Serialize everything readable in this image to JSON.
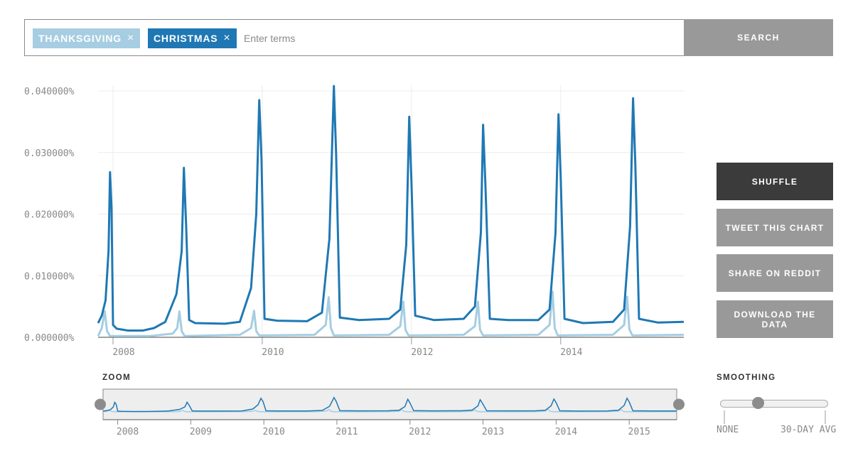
{
  "search": {
    "tags": [
      {
        "label": "THANKSGIVING",
        "remove": "×",
        "color": "#a6cde2"
      },
      {
        "label": "CHRISTMAS",
        "remove": "×",
        "color": "#1f78b4"
      }
    ],
    "placeholder": "Enter terms",
    "button": "SEARCH"
  },
  "actions": {
    "shuffle": "SHUFFLE",
    "tweet": "TWEET THIS CHART",
    "reddit": "SHARE ON REDDIT",
    "download": "DOWNLOAD THE DATA"
  },
  "zoom": {
    "label": "ZOOM",
    "ticks": [
      "2008",
      "2009",
      "2010",
      "2011",
      "2012",
      "2013",
      "2014",
      "2015"
    ]
  },
  "smoothing": {
    "label": "SMOOTHING",
    "min_label": "NONE",
    "max_label": "30-DAY AVG",
    "value": 0.35
  },
  "chart_data": {
    "type": "line",
    "title": "",
    "xlabel": "",
    "ylabel": "",
    "xlim": [
      2007.8,
      2015.65
    ],
    "ylim": [
      0,
      0.04
    ],
    "y_tick_labels": [
      "0.000000%",
      "0.010000%",
      "0.020000%",
      "0.030000%",
      "0.040000%"
    ],
    "x_tick_labels": [
      "2008",
      "2010",
      "2012",
      "2014"
    ],
    "grid": true,
    "series": [
      {
        "name": "CHRISTMAS",
        "color": "#1f78b4",
        "points": [
          [
            2007.8,
            0.0023
          ],
          [
            2007.85,
            0.0035
          ],
          [
            2007.9,
            0.006
          ],
          [
            2007.94,
            0.014
          ],
          [
            2007.96,
            0.0268
          ],
          [
            2007.98,
            0.021
          ],
          [
            2008.0,
            0.002
          ],
          [
            2008.05,
            0.0014
          ],
          [
            2008.2,
            0.0011
          ],
          [
            2008.4,
            0.0011
          ],
          [
            2008.55,
            0.0015
          ],
          [
            2008.7,
            0.0025
          ],
          [
            2008.85,
            0.007
          ],
          [
            2008.92,
            0.014
          ],
          [
            2008.95,
            0.0275
          ],
          [
            2008.98,
            0.018
          ],
          [
            2009.02,
            0.0028
          ],
          [
            2009.1,
            0.0023
          ],
          [
            2009.5,
            0.0022
          ],
          [
            2009.7,
            0.0025
          ],
          [
            2009.85,
            0.008
          ],
          [
            2009.92,
            0.02
          ],
          [
            2009.96,
            0.0385
          ],
          [
            2009.99,
            0.029
          ],
          [
            2010.03,
            0.003
          ],
          [
            2010.2,
            0.0027
          ],
          [
            2010.6,
            0.0026
          ],
          [
            2010.8,
            0.004
          ],
          [
            2010.9,
            0.016
          ],
          [
            2010.96,
            0.0408
          ],
          [
            2010.99,
            0.03
          ],
          [
            2011.04,
            0.0032
          ],
          [
            2011.3,
            0.0028
          ],
          [
            2011.7,
            0.003
          ],
          [
            2011.85,
            0.0045
          ],
          [
            2011.93,
            0.015
          ],
          [
            2011.97,
            0.0358
          ],
          [
            2012.0,
            0.025
          ],
          [
            2012.05,
            0.0035
          ],
          [
            2012.3,
            0.0028
          ],
          [
            2012.7,
            0.003
          ],
          [
            2012.85,
            0.005
          ],
          [
            2012.93,
            0.017
          ],
          [
            2012.96,
            0.0345
          ],
          [
            2012.99,
            0.025
          ],
          [
            2013.05,
            0.003
          ],
          [
            2013.3,
            0.0028
          ],
          [
            2013.7,
            0.0028
          ],
          [
            2013.85,
            0.0045
          ],
          [
            2013.93,
            0.017
          ],
          [
            2013.97,
            0.0362
          ],
          [
            2014.0,
            0.026
          ],
          [
            2014.05,
            0.003
          ],
          [
            2014.3,
            0.0023
          ],
          [
            2014.7,
            0.0025
          ],
          [
            2014.85,
            0.0045
          ],
          [
            2014.93,
            0.018
          ],
          [
            2014.97,
            0.0388
          ],
          [
            2015.0,
            0.028
          ],
          [
            2015.05,
            0.003
          ],
          [
            2015.3,
            0.0024
          ],
          [
            2015.65,
            0.0025
          ]
        ]
      },
      {
        "name": "THANKSGIVING",
        "color": "#a6cde2",
        "points": [
          [
            2007.8,
            0.0002
          ],
          [
            2007.85,
            0.0015
          ],
          [
            2007.89,
            0.0042
          ],
          [
            2007.92,
            0.001
          ],
          [
            2007.96,
            0.0002
          ],
          [
            2008.5,
            0.0002
          ],
          [
            2008.8,
            0.0006
          ],
          [
            2008.86,
            0.0015
          ],
          [
            2008.89,
            0.0042
          ],
          [
            2008.92,
            0.001
          ],
          [
            2008.96,
            0.0002
          ],
          [
            2009.7,
            0.0004
          ],
          [
            2009.85,
            0.0015
          ],
          [
            2009.89,
            0.0043
          ],
          [
            2009.92,
            0.001
          ],
          [
            2009.96,
            0.0003
          ],
          [
            2010.7,
            0.0004
          ],
          [
            2010.85,
            0.002
          ],
          [
            2010.89,
            0.0065
          ],
          [
            2010.92,
            0.0015
          ],
          [
            2010.96,
            0.0003
          ],
          [
            2011.7,
            0.0004
          ],
          [
            2011.85,
            0.0018
          ],
          [
            2011.89,
            0.0058
          ],
          [
            2011.92,
            0.0012
          ],
          [
            2011.96,
            0.0003
          ],
          [
            2012.7,
            0.0004
          ],
          [
            2012.85,
            0.0018
          ],
          [
            2012.89,
            0.0058
          ],
          [
            2012.92,
            0.0012
          ],
          [
            2012.96,
            0.0003
          ],
          [
            2013.7,
            0.0004
          ],
          [
            2013.85,
            0.002
          ],
          [
            2013.89,
            0.0074
          ],
          [
            2013.92,
            0.0015
          ],
          [
            2013.96,
            0.0003
          ],
          [
            2014.7,
            0.0004
          ],
          [
            2014.85,
            0.002
          ],
          [
            2014.89,
            0.0066
          ],
          [
            2014.92,
            0.0013
          ],
          [
            2014.96,
            0.0003
          ],
          [
            2015.65,
            0.0004
          ]
        ]
      }
    ]
  }
}
